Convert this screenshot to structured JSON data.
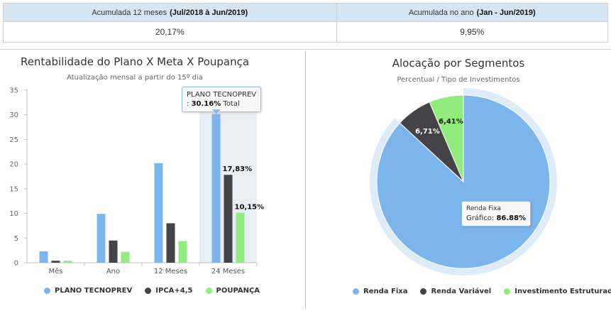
{
  "summary": {
    "col1_label": "Acumulada 12 meses",
    "col1_period": "(Jul/2018 à Jun/2019)",
    "col1_value": "20,17%",
    "col2_label": "Acumulada no ano",
    "col2_period": "(Jan - Jun/2019)",
    "col2_value": "9,95%"
  },
  "colors": {
    "plano": "#7cb5ec",
    "ipca": "#434348",
    "poupanca": "#90ed7d",
    "highlight": "#e9eef5"
  },
  "tooltip_left": {
    "title": "PLANO TECNOPREV",
    "value": "30.16%",
    "suffix": "Total"
  },
  "tooltip_right": {
    "title": "Renda Fixa",
    "label": "Gráfico:",
    "value": "86.88%"
  },
  "chart_data": [
    {
      "type": "bar",
      "title": "Rentabilidade do Plano X Meta X Poupança",
      "subtitle": "Atualização mensal a partir do 15º dia",
      "categories": [
        "Mês",
        "Ano",
        "12 Meses",
        "24 Meses"
      ],
      "series": [
        {
          "name": "PLANO TECNOPREV",
          "values": [
            2.3,
            9.9,
            20.17,
            30.16
          ]
        },
        {
          "name": "IPCA+4,5",
          "values": [
            0.4,
            4.5,
            8.0,
            17.83
          ]
        },
        {
          "name": "POUPANÇA",
          "values": [
            0.4,
            2.2,
            4.4,
            10.15
          ]
        }
      ],
      "data_labels": {
        "1": {
          "3": "17,83%"
        },
        "2": {
          "3": "10,15%"
        }
      },
      "ylim": [
        0,
        35
      ],
      "yticks": [
        0,
        5,
        10,
        15,
        20,
        25,
        30,
        35
      ],
      "highlighted_category": "24 Meses",
      "legend": "bottom"
    },
    {
      "type": "pie",
      "title": "Alocação por Segmentos",
      "subtitle": "Percentual / Tipo de Investimentos",
      "slices": [
        {
          "name": "Renda Fixa",
          "value": 86.88,
          "label": ""
        },
        {
          "name": "Renda Variável",
          "value": 6.71,
          "label": "6,71%"
        },
        {
          "name": "Investimento Estruturado",
          "value": 6.41,
          "label": "6,41%"
        }
      ],
      "highlighted_slice": "Renda Fixa",
      "legend": "bottom"
    }
  ]
}
